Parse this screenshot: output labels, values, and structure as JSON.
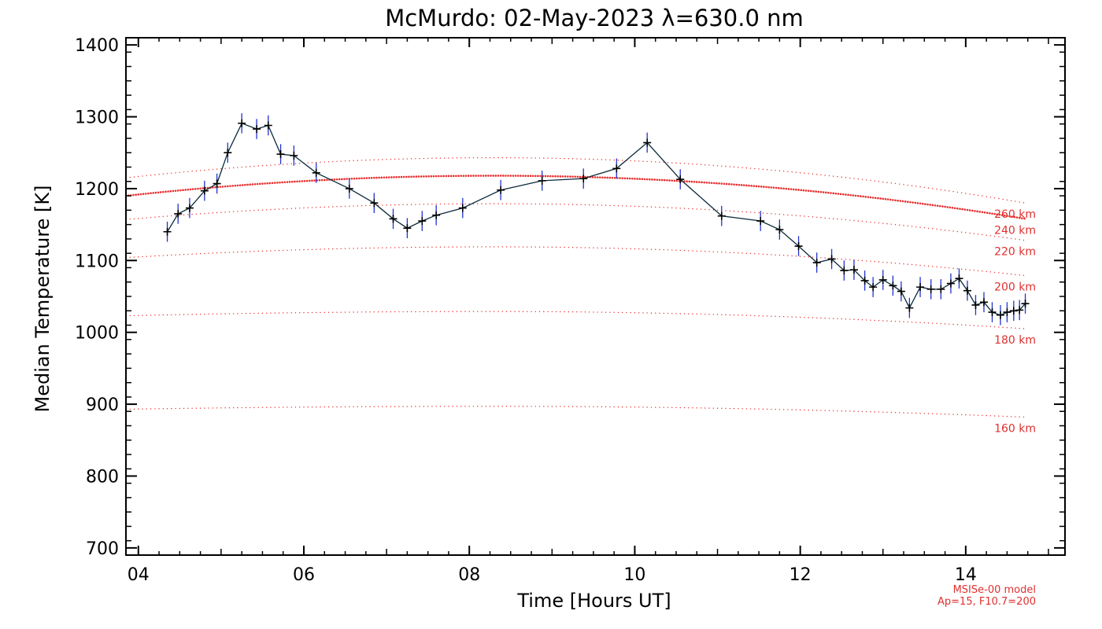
{
  "chart_data": {
    "type": "line",
    "title": "McMurdo: 02-May-2023 λ=630.0 nm",
    "xlabel": "Time [Hours UT]",
    "ylabel": "Median Temperature [K]",
    "xlim": [
      3.85,
      15.2
    ],
    "ylim": [
      690,
      1410
    ],
    "x_ticks": [
      {
        "value": 4,
        "label": "04"
      },
      {
        "value": 6,
        "label": "06"
      },
      {
        "value": 8,
        "label": "08"
      },
      {
        "value": 10,
        "label": "10"
      },
      {
        "value": 12,
        "label": "12"
      },
      {
        "value": 14,
        "label": "14"
      }
    ],
    "y_ticks": [
      {
        "value": 700,
        "label": "700"
      },
      {
        "value": 800,
        "label": "800"
      },
      {
        "value": 900,
        "label": "900"
      },
      {
        "value": 1000,
        "label": "1000"
      },
      {
        "value": 1100,
        "label": "1100"
      },
      {
        "value": 1200,
        "label": "1200"
      },
      {
        "value": 1300,
        "label": "1300"
      },
      {
        "value": 1400,
        "label": "1400"
      }
    ],
    "grid": false,
    "series": [
      {
        "color": "#0a2a3a",
        "error_color": "#2233cc",
        "error": 14,
        "x": [
          4.35,
          4.48,
          4.62,
          4.8,
          4.95,
          5.08,
          5.25,
          5.43,
          5.57,
          5.72,
          5.88,
          6.15,
          6.55,
          6.85,
          7.08,
          7.25,
          7.43,
          7.6,
          7.92,
          8.38,
          8.88,
          9.38,
          9.78,
          10.15,
          10.55,
          11.05,
          11.52,
          11.75,
          11.98,
          12.2,
          12.38,
          12.53,
          12.65,
          12.78,
          12.88,
          13.0,
          13.12,
          13.22,
          13.32,
          13.45,
          13.58,
          13.7,
          13.82,
          13.92,
          14.02,
          14.12,
          14.22,
          14.32,
          14.42,
          14.5,
          14.58,
          14.65,
          14.72
        ],
        "y": [
          1140,
          1165,
          1173,
          1197,
          1207,
          1250,
          1291,
          1283,
          1288,
          1248,
          1246,
          1222,
          1200,
          1180,
          1158,
          1145,
          1155,
          1163,
          1173,
          1198,
          1211,
          1214,
          1228,
          1264,
          1213,
          1162,
          1155,
          1143,
          1120,
          1097,
          1102,
          1086,
          1087,
          1072,
          1063,
          1073,
          1065,
          1057,
          1034,
          1063,
          1060,
          1060,
          1068,
          1075,
          1058,
          1038,
          1042,
          1028,
          1024,
          1028,
          1030,
          1031,
          1040
        ]
      }
    ],
    "model_curves": [
      {
        "label": "160 km",
        "style": "sparse",
        "y_start": 893,
        "y_peak": 897,
        "y_end": 882
      },
      {
        "label": "180 km",
        "style": "sparse",
        "y_start": 1023,
        "y_peak": 1029,
        "y_end": 1005
      },
      {
        "label": "200 km",
        "style": "sparse",
        "y_start": 1104,
        "y_peak": 1119,
        "y_end": 1079
      },
      {
        "label": "220 km",
        "style": "sparse",
        "y_start": 1157,
        "y_peak": 1179,
        "y_end": 1128
      },
      {
        "label": "240 km",
        "style": "dense",
        "y_start": 1190,
        "y_peak": 1218,
        "y_end": 1158
      },
      {
        "label": "260 km",
        "style": "sparse",
        "y_start": 1215,
        "y_peak": 1243,
        "y_end": 1180
      }
    ],
    "model_note": [
      "MSISe-00 model",
      "Ap=15, F10.7=200"
    ],
    "colors": {
      "model": "#e83030",
      "data": "#0a2a3a",
      "errors": "#2233cc"
    }
  }
}
